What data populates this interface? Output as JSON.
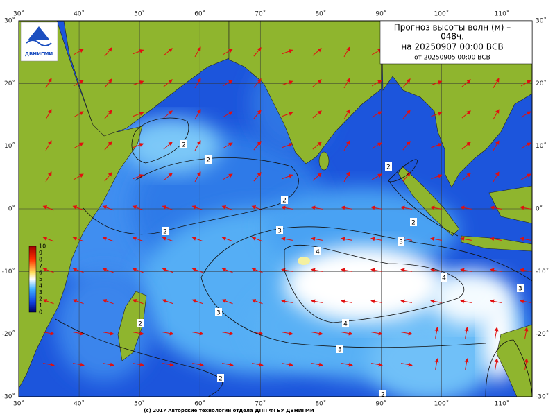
{
  "header": {
    "title": "Прогноз высоты волн (м) –",
    "lead": "048ч.",
    "valid": "на 20250907 00:00 ВСВ",
    "issued": "от 20250905 00:00 ВСВ"
  },
  "logo": {
    "text": "ДВНИГМИ"
  },
  "map": {
    "lon_labels": [
      "30˚",
      "40˚",
      "50˚",
      "60˚",
      "70˚",
      "80˚",
      "90˚",
      "100˚",
      "110˚"
    ],
    "lat_labels": [
      "30˚",
      "20˚",
      "10˚",
      "0˚",
      "-10˚",
      "-20˚",
      "-30˚"
    ]
  },
  "colorbar": {
    "labels": [
      "10",
      "9",
      "8",
      "7",
      "6",
      "5",
      "4",
      "3",
      "2",
      "1",
      "0"
    ]
  },
  "contours": {
    "labels": [
      "4",
      "4",
      "4",
      "3",
      "3",
      "3",
      "3",
      "3",
      "2",
      "2",
      "2",
      "2",
      "2",
      "2",
      "2",
      "2",
      "2"
    ]
  },
  "footer": "(c) 2017 Авторские технологии отдела ДПП ФГБУ ДВНИГМИ"
}
